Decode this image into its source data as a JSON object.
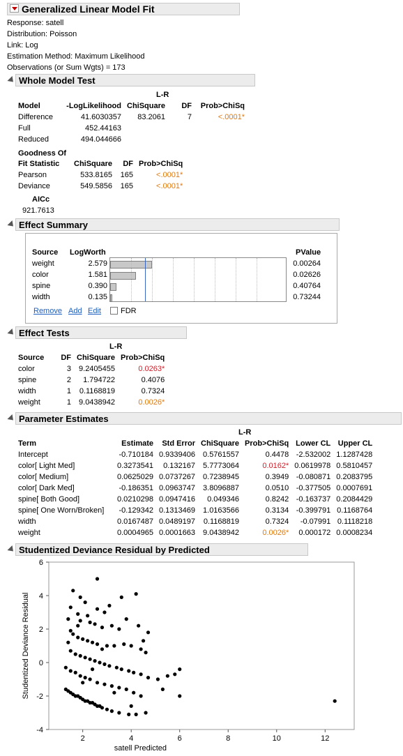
{
  "title": "Generalized Linear Model Fit",
  "info": [
    "Response: satell",
    "Distribution: Poisson",
    "Link: Log",
    "Estimation Method: Maximum Likelihood",
    "Observations (or Sum Wgts) = 173"
  ],
  "whole_model": {
    "title": "Whole Model Test",
    "lr_label": "L-R",
    "headers": [
      "Model",
      "-LogLikelihood",
      "ChiSquare",
      "DF",
      "Prob>ChiSq"
    ],
    "rows": [
      [
        "Difference",
        "41.6030357",
        "83.2061",
        "7",
        "<.0001*"
      ],
      [
        "Full",
        "452.44163",
        "",
        "",
        ""
      ],
      [
        "Reduced",
        "494.044666",
        "",
        "",
        ""
      ]
    ],
    "gof_header1": "Goodness Of",
    "gof_headers": [
      "Fit Statistic",
      "ChiSquare",
      "DF",
      "Prob>ChiSq"
    ],
    "gof_rows": [
      [
        "Pearson",
        "533.8165",
        "165",
        "<.0001*"
      ],
      [
        "Deviance",
        "549.5856",
        "165",
        "<.0001*"
      ]
    ],
    "aicc_label": "AICc",
    "aicc_value": "921.7613"
  },
  "effect_summary": {
    "title": "Effect Summary",
    "headers": [
      "Source",
      "LogWorth",
      "PValue"
    ],
    "rows": [
      {
        "source": "weight",
        "logworth": "2.579",
        "value": 2.579,
        "pvalue": "0.00264"
      },
      {
        "source": "color",
        "logworth": "1.581",
        "value": 1.581,
        "pvalue": "0.02626"
      },
      {
        "source": "spine",
        "logworth": "0.390",
        "value": 0.39,
        "pvalue": "0.40764"
      },
      {
        "source": "width",
        "logworth": "0.135",
        "value": 0.135,
        "pvalue": "0.73244"
      }
    ],
    "remove_label": "Remove",
    "add_label": "Add",
    "edit_label": "Edit",
    "fdr_label": "FDR"
  },
  "effect_tests": {
    "title": "Effect Tests",
    "lr_label": "L-R",
    "headers": [
      "Source",
      "DF",
      "ChiSquare",
      "Prob>ChiSq"
    ],
    "rows": [
      [
        "color",
        "3",
        "9.2405455",
        "0.0263*"
      ],
      [
        "spine",
        "2",
        "1.794722",
        "0.4076"
      ],
      [
        "width",
        "1",
        "0.1168819",
        "0.7324"
      ],
      [
        "weight",
        "1",
        "9.0438942",
        "0.0026*"
      ]
    ]
  },
  "parameter_estimates": {
    "title": "Parameter Estimates",
    "lr_label": "L-R",
    "headers": [
      "Term",
      "Estimate",
      "Std Error",
      "ChiSquare",
      "Prob>ChiSq",
      "Lower CL",
      "Upper CL"
    ],
    "rows": [
      [
        "Intercept",
        "-0.710184",
        "0.9339406",
        "0.5761557",
        "0.4478",
        "-2.532002",
        "1.1287428"
      ],
      [
        "color[ Light Med]",
        "0.3273541",
        "0.132167",
        "5.7773064",
        "0.0162*",
        "0.0619978",
        "0.5810457"
      ],
      [
        "color[ Medium]",
        "0.0625029",
        "0.0737267",
        "0.7238945",
        "0.3949",
        "-0.080871",
        "0.2083795"
      ],
      [
        "color[ Dark Med]",
        "-0.186351",
        "0.0963747",
        "3.8096887",
        "0.0510",
        "-0.377505",
        "0.0007691"
      ],
      [
        "spine[ Both Good]",
        "0.0210298",
        "0.0947416",
        "0.049346",
        "0.8242",
        "-0.163737",
        "0.2084429"
      ],
      [
        "spine[ One Worn/Broken]",
        "-0.129342",
        "0.1313469",
        "1.0163566",
        "0.3134",
        "-0.399791",
        "0.1168764"
      ],
      [
        "width",
        "0.0167487",
        "0.0489197",
        "0.1168819",
        "0.7324",
        "-0.07991",
        "0.1118218"
      ],
      [
        "weight",
        "0.0004965",
        "0.0001663",
        "9.0438942",
        "0.0026*",
        "0.000172",
        "0.0008234"
      ]
    ]
  },
  "residual_plot": {
    "title": "Studentized Deviance Residual by Predicted"
  },
  "chart_data": {
    "type": "scatter",
    "title": "Studentized Deviance Residual by Predicted",
    "xlabel": "satell Predicted",
    "ylabel": "Studentized Deviance Residual",
    "xlim": [
      0.6,
      13.2
    ],
    "ylim": [
      -4,
      6
    ],
    "xticks": [
      2,
      4,
      6,
      8,
      10,
      12
    ],
    "yticks": [
      -4,
      -2,
      0,
      2,
      4,
      6
    ],
    "grid": false,
    "points": [
      [
        2.6,
        5.0
      ],
      [
        1.6,
        4.3
      ],
      [
        1.9,
        3.9
      ],
      [
        4.2,
        4.1
      ],
      [
        3.6,
        3.9
      ],
      [
        2.1,
        3.6
      ],
      [
        1.5,
        3.3
      ],
      [
        2.6,
        3.2
      ],
      [
        2.9,
        3.0
      ],
      [
        1.8,
        2.9
      ],
      [
        1.4,
        2.6
      ],
      [
        1.9,
        2.5
      ],
      [
        2.3,
        2.4
      ],
      [
        2.5,
        2.3
      ],
      [
        2.8,
        2.1
      ],
      [
        3.2,
        2.2
      ],
      [
        3.5,
        2.0
      ],
      [
        4.3,
        2.2
      ],
      [
        4.7,
        1.8
      ],
      [
        1.5,
        1.9
      ],
      [
        1.6,
        1.7
      ],
      [
        1.8,
        1.5
      ],
      [
        2.0,
        1.4
      ],
      [
        2.2,
        1.3
      ],
      [
        2.4,
        1.2
      ],
      [
        2.6,
        1.1
      ],
      [
        3.0,
        1.0
      ],
      [
        3.3,
        1.0
      ],
      [
        3.7,
        1.1
      ],
      [
        4.0,
        1.0
      ],
      [
        4.4,
        0.8
      ],
      [
        4.6,
        0.6
      ],
      [
        1.5,
        0.7
      ],
      [
        1.7,
        0.5
      ],
      [
        1.9,
        0.4
      ],
      [
        2.1,
        0.3
      ],
      [
        2.3,
        0.2
      ],
      [
        2.5,
        0.1
      ],
      [
        2.7,
        0.0
      ],
      [
        2.9,
        -0.1
      ],
      [
        3.1,
        -0.2
      ],
      [
        3.4,
        -0.3
      ],
      [
        3.6,
        -0.4
      ],
      [
        3.9,
        -0.5
      ],
      [
        4.1,
        -0.6
      ],
      [
        4.4,
        -0.7
      ],
      [
        4.7,
        -0.9
      ],
      [
        5.1,
        -1.0
      ],
      [
        5.5,
        -0.8
      ],
      [
        5.8,
        -0.7
      ],
      [
        6.0,
        -0.4
      ],
      [
        1.3,
        -0.3
      ],
      [
        1.5,
        -0.5
      ],
      [
        1.7,
        -0.6
      ],
      [
        1.9,
        -0.8
      ],
      [
        2.1,
        -0.9
      ],
      [
        2.3,
        -1.0
      ],
      [
        2.6,
        -1.2
      ],
      [
        2.9,
        -1.3
      ],
      [
        3.2,
        -1.4
      ],
      [
        3.5,
        -1.5
      ],
      [
        3.8,
        -1.6
      ],
      [
        4.1,
        -1.8
      ],
      [
        4.4,
        -2.0
      ],
      [
        1.3,
        -1.6
      ],
      [
        1.4,
        -1.7
      ],
      [
        1.5,
        -1.8
      ],
      [
        1.6,
        -1.9
      ],
      [
        1.7,
        -2.0
      ],
      [
        1.8,
        -2.0
      ],
      [
        1.9,
        -2.1
      ],
      [
        2.0,
        -2.2
      ],
      [
        2.1,
        -2.3
      ],
      [
        2.2,
        -2.3
      ],
      [
        2.3,
        -2.4
      ],
      [
        2.4,
        -2.4
      ],
      [
        2.5,
        -2.5
      ],
      [
        2.6,
        -2.6
      ],
      [
        2.7,
        -2.6
      ],
      [
        2.8,
        -2.7
      ],
      [
        3.0,
        -2.8
      ],
      [
        3.2,
        -2.9
      ],
      [
        3.5,
        -3.0
      ],
      [
        3.9,
        -3.1
      ],
      [
        4.2,
        -3.1
      ],
      [
        4.6,
        -3.0
      ],
      [
        5.3,
        -1.6
      ],
      [
        6.0,
        -2.0
      ],
      [
        12.4,
        -2.3
      ],
      [
        2.0,
        -1.2
      ],
      [
        2.8,
        0.8
      ],
      [
        3.8,
        2.6
      ],
      [
        1.4,
        1.2
      ],
      [
        2.4,
        -0.4
      ],
      [
        3.3,
        -1.8
      ],
      [
        4.0,
        -2.6
      ],
      [
        1.8,
        2.2
      ],
      [
        3.1,
        3.4
      ],
      [
        2.2,
        2.8
      ],
      [
        4.5,
        1.3
      ]
    ]
  }
}
